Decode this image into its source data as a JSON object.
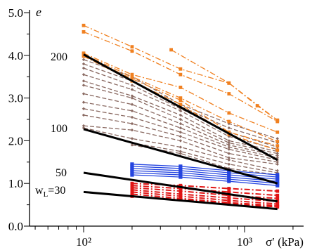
{
  "chart_data": {
    "type": "line",
    "xlabel": "σ′ (kPa)",
    "ylabel": "e",
    "x_scale": "log",
    "xlim": [
      50,
      2300
    ],
    "ylim": [
      0.0,
      5.0
    ],
    "x_ticks": [
      100,
      1000
    ],
    "x_tick_labels": [
      "10²",
      "10³"
    ],
    "y_ticks": [
      0.0,
      1.0,
      2.0,
      3.0,
      4.0,
      5.0
    ],
    "y_tick_labels": [
      "0.0",
      "1.0",
      "2.0",
      "3.0",
      "4.0",
      "5.0"
    ],
    "grid": false,
    "colors": {
      "orange": "#f08020",
      "brown": "#8a6a62",
      "blue": "#2545e0",
      "red": "#e01515",
      "black": "#000000"
    },
    "reference_lines": [
      {
        "label": "200",
        "x": [
          100,
          1600
        ],
        "y": [
          4.02,
          1.55
        ]
      },
      {
        "label": "100",
        "x": [
          100,
          1600
        ],
        "y": [
          2.27,
          1.0
        ]
      },
      {
        "label": "50",
        "x": [
          100,
          1600
        ],
        "y": [
          1.25,
          0.58
        ]
      },
      {
        "label": "30",
        "x": [
          100,
          1600
        ],
        "y": [
          0.8,
          0.4
        ]
      }
    ],
    "label_prefix_30": "w",
    "label_sub_30": "L",
    "label_suffix_30": "=30",
    "series_orange": [
      {
        "x": [
          100,
          200,
          400,
          800,
          1600
        ],
        "y": [
          4.7,
          4.2,
          3.68,
          3.35,
          2.48
        ]
      },
      {
        "x": [
          100,
          200,
          400,
          800,
          1600
        ],
        "y": [
          4.55,
          4.1,
          3.55,
          3.1,
          2.45
        ]
      },
      {
        "x": [
          350,
          800,
          1200,
          1600
        ],
        "y": [
          4.13,
          3.35,
          2.82,
          2.48
        ]
      },
      {
        "x": [
          100,
          200,
          400,
          800,
          1600
        ],
        "y": [
          4.05,
          3.55,
          3.25,
          2.65,
          2.2
        ]
      },
      {
        "x": [
          100,
          200,
          400,
          800,
          1600
        ],
        "y": [
          4.02,
          3.5,
          3.0,
          2.45,
          1.98
        ]
      },
      {
        "x": [
          100,
          200,
          400,
          800,
          1600
        ],
        "y": [
          4.0,
          3.45,
          2.95,
          2.2,
          1.88
        ]
      },
      {
        "x": [
          100,
          200,
          400,
          800,
          1600
        ],
        "y": [
          3.98,
          3.4,
          2.85,
          2.15,
          1.78
        ]
      }
    ],
    "series_brown": [
      {
        "x": [
          100,
          200,
          400,
          800,
          1600
        ],
        "y": [
          3.9,
          3.5,
          2.85,
          2.4,
          2.05
        ]
      },
      {
        "x": [
          100,
          200,
          400,
          800,
          1600
        ],
        "y": [
          3.8,
          3.4,
          2.8,
          2.3,
          1.95
        ]
      },
      {
        "x": [
          100,
          200,
          400,
          800,
          1600
        ],
        "y": [
          3.7,
          3.3,
          2.75,
          2.2,
          1.85
        ]
      },
      {
        "x": [
          100,
          200,
          400,
          800,
          1600
        ],
        "y": [
          3.55,
          3.2,
          2.7,
          2.1,
          1.8
        ]
      },
      {
        "x": [
          100,
          200,
          400,
          800,
          1600
        ],
        "y": [
          3.4,
          3.05,
          2.6,
          2.0,
          1.75
        ]
      },
      {
        "x": [
          100,
          200,
          400,
          800,
          1600
        ],
        "y": [
          3.3,
          3.0,
          2.5,
          1.95,
          1.7
        ]
      },
      {
        "x": [
          100,
          200,
          400,
          800,
          1600
        ],
        "y": [
          3.1,
          2.85,
          2.4,
          1.9,
          1.65
        ]
      },
      {
        "x": [
          100,
          200,
          400,
          800,
          1600
        ],
        "y": [
          2.9,
          2.7,
          2.3,
          1.85,
          1.6
        ]
      },
      {
        "x": [
          100,
          200,
          400,
          800,
          1600
        ],
        "y": [
          2.75,
          2.55,
          2.2,
          1.8,
          1.55
        ]
      },
      {
        "x": [
          100,
          200,
          400,
          800,
          1600
        ],
        "y": [
          2.6,
          2.4,
          2.1,
          1.7,
          1.5
        ]
      },
      {
        "x": [
          100,
          200,
          400,
          800,
          1600
        ],
        "y": [
          2.35,
          2.25,
          2.0,
          1.6,
          1.45
        ]
      },
      {
        "x": [
          100,
          200,
          400,
          800,
          1600
        ],
        "y": [
          2.3,
          2.05,
          1.85,
          1.55,
          1.3
        ]
      },
      {
        "x": [
          200,
          400,
          800,
          1600
        ],
        "y": [
          1.95,
          1.75,
          1.45,
          1.25
        ]
      },
      {
        "x": [
          200,
          400,
          800,
          1600
        ],
        "y": [
          1.9,
          1.7,
          1.35,
          1.2
        ]
      }
    ],
    "series_blue": [
      {
        "x": [
          200,
          400,
          800,
          1600
        ],
        "y": [
          1.45,
          1.4,
          1.3,
          1.2
        ]
      },
      {
        "x": [
          200,
          400,
          800,
          1600
        ],
        "y": [
          1.4,
          1.35,
          1.25,
          1.15
        ]
      },
      {
        "x": [
          200,
          400,
          800,
          1600
        ],
        "y": [
          1.35,
          1.3,
          1.2,
          1.1
        ]
      },
      {
        "x": [
          200,
          400,
          800,
          1600
        ],
        "y": [
          1.3,
          1.25,
          1.15,
          1.05
        ]
      },
      {
        "x": [
          200,
          400,
          800,
          1600
        ],
        "y": [
          1.25,
          1.2,
          1.1,
          1.0
        ]
      },
      {
        "x": [
          200,
          400,
          800,
          1600
        ],
        "y": [
          1.2,
          1.15,
          1.05,
          0.95
        ]
      }
    ],
    "series_red": [
      {
        "x": [
          200,
          400,
          800,
          1600
        ],
        "y": [
          1.0,
          0.95,
          0.88,
          0.82
        ]
      },
      {
        "x": [
          200,
          400,
          800,
          1600
        ],
        "y": [
          0.95,
          0.88,
          0.8,
          0.72
        ]
      },
      {
        "x": [
          200,
          400,
          800,
          1600
        ],
        "y": [
          0.9,
          0.82,
          0.72,
          0.65
        ]
      },
      {
        "x": [
          200,
          400,
          800,
          1600
        ],
        "y": [
          0.85,
          0.75,
          0.66,
          0.58
        ]
      },
      {
        "x": [
          200,
          400,
          800,
          1600
        ],
        "y": [
          0.8,
          0.7,
          0.6,
          0.52
        ]
      },
      {
        "x": [
          200,
          400,
          800,
          1600
        ],
        "y": [
          0.75,
          0.65,
          0.55,
          0.48
        ]
      },
      {
        "x": [
          200,
          400,
          800,
          1600
        ],
        "y": [
          0.7,
          0.62,
          0.52,
          0.45
        ]
      }
    ]
  }
}
